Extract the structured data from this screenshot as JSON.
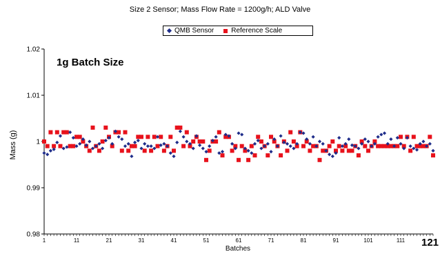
{
  "title": "Size 2 Sensor; Mass Flow Rate = 1200g/h; ALD Valve",
  "annotation": "1g Batch Size",
  "page_number": "121",
  "colors": {
    "qmb": "#1f2d8a",
    "reference": "#e8121c"
  },
  "chart_data": {
    "type": "scatter",
    "title": "Size 2 Sensor; Mass Flow Rate = 1200g/h; ALD Valve",
    "xlabel": "Batches",
    "ylabel": "Mass (g)",
    "xlim": [
      1,
      121
    ],
    "ylim": [
      0.98,
      1.02
    ],
    "yticks": [
      "0.98",
      "0.99",
      "1",
      "1.01",
      "1.02"
    ],
    "xticks": [
      "1",
      "11",
      "21",
      "31",
      "41",
      "51",
      "61",
      "71",
      "81",
      "91",
      "101",
      "111"
    ],
    "legend": "top-center",
    "series": [
      {
        "name": "QMB Sensor",
        "marker": "diamond",
        "x": [
          1,
          2,
          3,
          4,
          5,
          6,
          7,
          8,
          9,
          10,
          11,
          12,
          13,
          14,
          15,
          16,
          17,
          18,
          19,
          20,
          21,
          22,
          23,
          24,
          25,
          26,
          27,
          28,
          29,
          30,
          31,
          32,
          33,
          34,
          35,
          36,
          37,
          38,
          39,
          40,
          41,
          42,
          43,
          44,
          45,
          46,
          47,
          48,
          49,
          50,
          51,
          52,
          53,
          54,
          55,
          56,
          57,
          58,
          59,
          60,
          61,
          62,
          63,
          64,
          65,
          66,
          67,
          68,
          69,
          70,
          71,
          72,
          73,
          74,
          75,
          76,
          77,
          78,
          79,
          80,
          81,
          82,
          83,
          84,
          85,
          86,
          87,
          88,
          89,
          90,
          91,
          92,
          93,
          94,
          95,
          96,
          97,
          98,
          99,
          100,
          101,
          102,
          103,
          104,
          105,
          106,
          107,
          108,
          109,
          110,
          111,
          112,
          113,
          114,
          115,
          116,
          117,
          118,
          119,
          120,
          121
        ],
        "y": [
          0.9975,
          0.9972,
          0.998,
          0.9983,
          0.9998,
          1.0012,
          0.9985,
          0.9988,
          1.002,
          1.0008,
          0.999,
          0.9995,
          1.0005,
          0.9992,
          1.0,
          0.9985,
          0.999,
          0.9995,
          0.9985,
          1.0002,
          1.0008,
          0.9995,
          1.0022,
          1.001,
          1.0005,
          0.999,
          0.9995,
          0.9968,
          0.9998,
          1.0002,
          0.9985,
          0.9995,
          0.999,
          0.999,
          0.9985,
          1.001,
          0.9992,
          0.9995,
          0.999,
          0.9975,
          0.9968,
          0.9998,
          1.0022,
          1.001,
          1.0,
          0.9995,
          0.9985,
          1.0012,
          0.9992,
          0.9985,
          0.9978,
          0.999,
          1.0002,
          1.001,
          0.9975,
          0.9978,
          1.0015,
          1.0012,
          0.9995,
          0.9985,
          1.0018,
          1.0015,
          0.9985,
          0.998,
          0.9975,
          0.9995,
          1.0002,
          0.9985,
          0.999,
          0.9995,
          0.9978,
          1.0005,
          0.999,
          1.0012,
          0.9998,
          0.9995,
          0.999,
          0.9985,
          0.9995,
          1.002,
          1.0018,
          1.0005,
          0.9995,
          1.001,
          0.999,
          1.0,
          0.9995,
          0.998,
          0.9972,
          0.9968,
          0.9975,
          1.0008,
          0.999,
          0.9995,
          1.0005,
          0.9992,
          0.999,
          0.9985,
          0.9995,
          1.0005,
          1.0,
          0.999,
          0.9995,
          1.001,
          1.0015,
          1.0018,
          0.9995,
          1.0005,
          0.999,
          1.0008,
          0.9995,
          0.9985,
          1.0008,
          0.999,
          0.9985,
          0.9982,
          0.9995,
          1.0,
          0.999,
          0.9995,
          0.998
        ]
      },
      {
        "name": "Reference Scale",
        "marker": "square",
        "x": [
          1,
          2,
          3,
          4,
          5,
          6,
          7,
          8,
          9,
          10,
          11,
          12,
          13,
          14,
          15,
          16,
          17,
          18,
          19,
          20,
          21,
          22,
          23,
          24,
          25,
          26,
          27,
          28,
          29,
          30,
          31,
          32,
          33,
          34,
          35,
          36,
          37,
          38,
          39,
          40,
          41,
          42,
          43,
          44,
          45,
          46,
          47,
          48,
          49,
          50,
          51,
          52,
          53,
          54,
          55,
          56,
          57,
          58,
          59,
          60,
          61,
          62,
          63,
          64,
          65,
          66,
          67,
          68,
          69,
          70,
          71,
          72,
          73,
          74,
          75,
          76,
          77,
          78,
          79,
          80,
          81,
          82,
          83,
          84,
          85,
          86,
          87,
          88,
          89,
          90,
          91,
          92,
          93,
          94,
          95,
          96,
          97,
          98,
          99,
          100,
          101,
          102,
          103,
          104,
          105,
          106,
          107,
          108,
          109,
          110,
          111,
          112,
          113,
          114,
          115,
          116,
          117,
          118,
          119,
          120,
          121
        ],
        "y": [
          1.0,
          0.999,
          1.002,
          0.999,
          1.002,
          0.999,
          1.002,
          1.002,
          0.999,
          0.999,
          1.001,
          1.001,
          1.0,
          0.999,
          0.998,
          1.003,
          0.999,
          0.998,
          1.0,
          1.003,
          1.001,
          0.999,
          1.002,
          1.002,
          0.998,
          1.002,
          0.998,
          0.999,
          0.999,
          1.001,
          1.001,
          0.998,
          1.001,
          0.998,
          1.001,
          0.999,
          1.001,
          0.998,
          0.999,
          1.001,
          0.998,
          1.003,
          1.003,
          0.999,
          1.002,
          0.999,
          1.0,
          1.001,
          1.0,
          1.0,
          0.996,
          0.998,
          1.0,
          1.0,
          1.002,
          0.997,
          1.001,
          1.001,
          0.998,
          0.999,
          0.996,
          0.999,
          0.998,
          0.996,
          0.999,
          0.997,
          1.001,
          1.0,
          0.999,
          0.997,
          1.001,
          1.0,
          0.999,
          0.997,
          1.0,
          0.998,
          1.002,
          1.0,
          0.999,
          1.002,
          0.999,
          1.0,
          0.998,
          0.999,
          0.999,
          0.996,
          0.998,
          0.998,
          0.999,
          1.0,
          0.998,
          0.999,
          0.998,
          0.999,
          0.998,
          0.998,
          0.999,
          0.997,
          1.0,
          0.999,
          0.998,
          0.999,
          1.0,
          0.999,
          0.999,
          0.999,
          0.999,
          0.999,
          0.999,
          0.999,
          1.001,
          0.999,
          1.001,
          0.998,
          1.001,
          0.999,
          0.999,
          0.999,
          0.999,
          1.001,
          0.997
        ]
      }
    ]
  }
}
